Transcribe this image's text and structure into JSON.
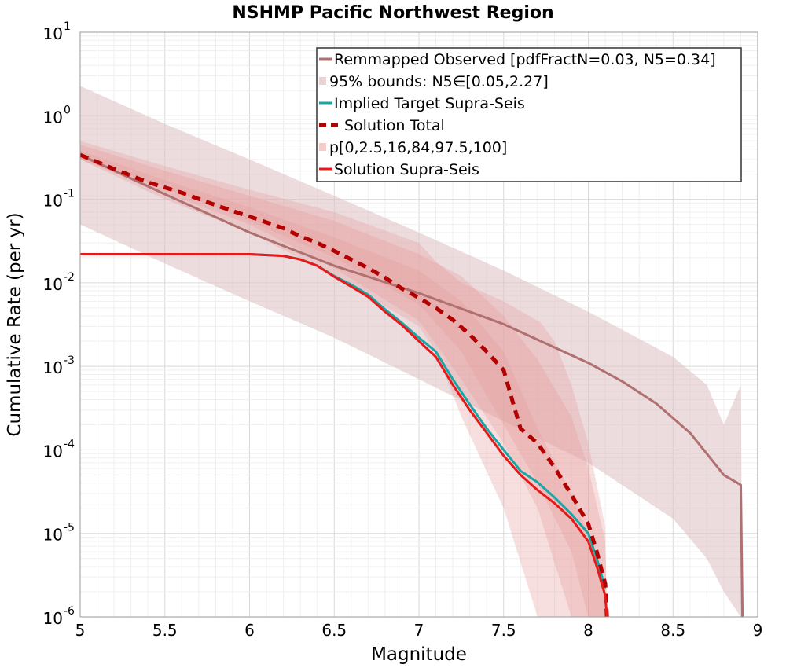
{
  "chart_data": {
    "type": "line",
    "title": "NSHMP Pacific Northwest Region",
    "xlabel": "Magnitude",
    "ylabel": "Cumulative Rate (per yr)",
    "xlim": [
      5,
      9
    ],
    "ylim": [
      1e-06,
      10
    ],
    "yscale": "log",
    "grid": true,
    "legend_position": "top-right",
    "x_ticks": [
      "5",
      "5.5",
      "6",
      "6.5",
      "7",
      "7.5",
      "8",
      "8.5",
      "9"
    ],
    "y_ticks": [
      {
        "base": "10",
        "exp": "1"
      },
      {
        "base": "10",
        "exp": "0"
      },
      {
        "base": "10",
        "exp": "-1"
      },
      {
        "base": "10",
        "exp": "-2"
      },
      {
        "base": "10",
        "exp": "-3"
      },
      {
        "base": "10",
        "exp": "-4"
      },
      {
        "base": "10",
        "exp": "-5"
      },
      {
        "base": "10",
        "exp": "-6"
      }
    ],
    "legend": [
      {
        "label": "Remmapped Observed [pdfFractN=0.03, N5=0.34]",
        "kind": "line",
        "color": "#b07070"
      },
      {
        "label": "95% bounds: N5∈[0.05,2.27]",
        "kind": "band",
        "color": "#e8d2d4"
      },
      {
        "label": "Implied Target Supra-Seis",
        "kind": "line",
        "color": "#1aa6a6"
      },
      {
        "label": "Solution Total",
        "kind": "dashed",
        "color": "#b30000"
      },
      {
        "label": "p[0,2.5,16,84,97.5,100]",
        "kind": "band",
        "color": "#f4cccc"
      },
      {
        "label": "Solution Supra-Seis",
        "kind": "line",
        "color": "#e61a1a"
      }
    ],
    "observed_bounds": {
      "x": [
        5.0,
        5.5,
        6.0,
        6.5,
        7.0,
        7.5,
        8.0,
        8.5,
        8.7,
        8.8,
        8.9,
        8.91
      ],
      "upper": [
        2.27,
        0.8,
        0.3,
        0.11,
        0.04,
        0.014,
        0.0045,
        0.0013,
        0.0006,
        0.0002,
        0.0006,
        1e-06
      ],
      "lower": [
        0.05,
        0.017,
        0.006,
        0.0022,
        0.0007,
        0.00022,
        7e-05,
        1.5e-05,
        5e-06,
        2e-06,
        1e-06,
        1e-06
      ]
    },
    "percentile_bands": [
      {
        "name": "0-100",
        "x": [
          5.0,
          5.5,
          6.0,
          6.5,
          7.0,
          7.1,
          7.25,
          7.5,
          7.7,
          7.71,
          7.8,
          7.9,
          8.0,
          8.1,
          8.11
        ],
        "upper": [
          0.5,
          0.25,
          0.13,
          0.07,
          0.03,
          0.018,
          0.01,
          0.006,
          0.0035,
          0.0035,
          0.002,
          0.0006,
          0.00012,
          1.2e-05,
          1e-06
        ],
        "lower": [
          0.3,
          0.1,
          0.04,
          0.012,
          0.003,
          0.0015,
          0.00025,
          2e-05,
          1e-06,
          1e-06,
          1e-06,
          1e-06,
          1e-06,
          1e-06,
          1e-06
        ]
      },
      {
        "name": "2.5-97.5",
        "x": [
          5.0,
          5.5,
          6.0,
          6.5,
          7.0,
          7.25,
          7.5,
          7.7,
          7.9,
          8.0,
          8.1,
          8.11
        ],
        "upper": [
          0.45,
          0.22,
          0.11,
          0.055,
          0.022,
          0.012,
          0.004,
          0.0012,
          0.00025,
          6e-05,
          8e-06,
          1e-06
        ],
        "lower": [
          0.3,
          0.12,
          0.05,
          0.015,
          0.0035,
          0.0007,
          0.00012,
          2e-05,
          1e-06,
          1e-06,
          1e-06,
          1e-06
        ]
      },
      {
        "name": "16-84",
        "x": [
          5.0,
          5.5,
          6.0,
          6.5,
          7.0,
          7.25,
          7.5,
          7.7,
          7.9,
          8.0,
          8.1,
          8.11
        ],
        "upper": [
          0.38,
          0.17,
          0.08,
          0.035,
          0.014,
          0.006,
          0.0015,
          0.00018,
          3e-05,
          1e-05,
          2e-06,
          1e-06
        ],
        "lower": [
          0.3,
          0.14,
          0.055,
          0.02,
          0.0055,
          0.0015,
          0.0002,
          4e-05,
          6e-06,
          1e-06,
          1e-06,
          1e-06
        ]
      }
    ],
    "series": [
      {
        "name": "Remmapped Observed [pdfFractN=0.03, N5=0.34]",
        "color": "#b07070",
        "style": "solid",
        "x": [
          5.0,
          5.5,
          6.0,
          6.5,
          7.0,
          7.5,
          8.0,
          8.2,
          8.4,
          8.6,
          8.7,
          8.8,
          8.9,
          8.91
        ],
        "y": [
          0.34,
          0.115,
          0.04,
          0.016,
          0.0075,
          0.0032,
          0.0011,
          0.00066,
          0.00036,
          0.00016,
          9e-05,
          5e-05,
          3.8e-05,
          1e-06
        ]
      },
      {
        "name": "Implied Target Supra-Seis",
        "color": "#1aa6a6",
        "style": "solid",
        "x": [
          5.0,
          5.5,
          6.0,
          6.2,
          6.3,
          6.4,
          6.5,
          6.6,
          6.7,
          6.8,
          6.9,
          7.0,
          7.1,
          7.2,
          7.3,
          7.4,
          7.5,
          7.6,
          7.7,
          7.8,
          7.9,
          8.0,
          8.05,
          8.1
        ],
        "y": [
          0.022,
          0.022,
          0.022,
          0.021,
          0.019,
          0.016,
          0.012,
          0.0095,
          0.0072,
          0.0048,
          0.0033,
          0.0022,
          0.0015,
          0.0007,
          0.00035,
          0.00018,
          0.0001,
          5.6e-05,
          4.1e-05,
          2.7e-05,
          1.7e-05,
          1e-05,
          5e-06,
          2.2e-06
        ]
      },
      {
        "name": "Solution Total",
        "color": "#b30000",
        "style": "dashed",
        "x": [
          5.0,
          5.2,
          5.4,
          5.6,
          5.8,
          6.0,
          6.2,
          6.3,
          6.4,
          6.5,
          6.6,
          6.7,
          6.8,
          6.9,
          7.0,
          7.1,
          7.2,
          7.3,
          7.4,
          7.5,
          7.55,
          7.6,
          7.7,
          7.8,
          7.9,
          8.0,
          8.05,
          8.1,
          8.11
        ],
        "y": [
          0.34,
          0.23,
          0.16,
          0.12,
          0.085,
          0.062,
          0.045,
          0.036,
          0.03,
          0.024,
          0.019,
          0.015,
          0.0115,
          0.0085,
          0.0066,
          0.005,
          0.0036,
          0.0024,
          0.0015,
          0.0009,
          0.0004,
          0.00018,
          0.00012,
          6.2e-05,
          2.9e-05,
          1.3e-05,
          6e-06,
          2.5e-06,
          1e-06
        ]
      },
      {
        "name": "Solution Supra-Seis",
        "color": "#e61a1a",
        "style": "solid",
        "x": [
          5.0,
          5.5,
          6.0,
          6.2,
          6.3,
          6.4,
          6.5,
          6.6,
          6.7,
          6.8,
          6.9,
          7.0,
          7.1,
          7.2,
          7.3,
          7.4,
          7.5,
          7.6,
          7.7,
          7.8,
          7.9,
          8.0,
          8.05,
          8.1,
          8.11
        ],
        "y": [
          0.022,
          0.022,
          0.022,
          0.021,
          0.019,
          0.016,
          0.0118,
          0.009,
          0.0068,
          0.0045,
          0.0031,
          0.002,
          0.0013,
          0.0006,
          0.0003,
          0.00016,
          8.5e-05,
          5e-05,
          3.3e-05,
          2.3e-05,
          1.5e-05,
          8e-06,
          4e-06,
          1.8e-06,
          1e-06
        ]
      }
    ]
  }
}
